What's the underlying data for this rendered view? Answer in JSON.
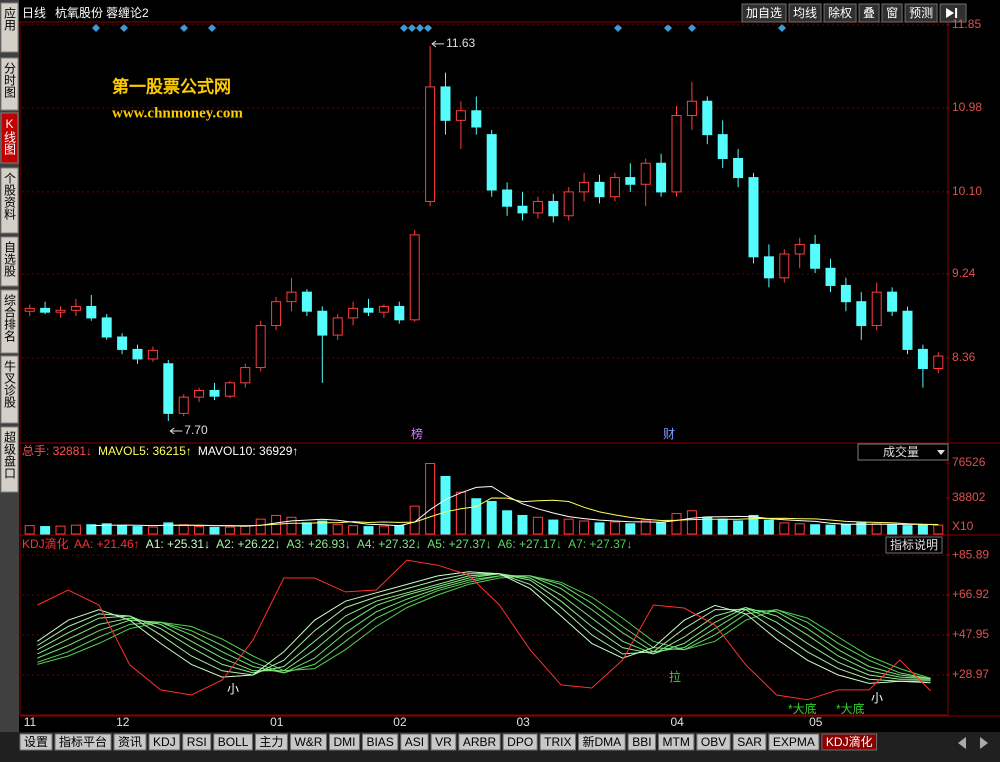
{
  "app": {
    "sidebar": [
      "应用",
      "分时图",
      "K线图",
      "个股资料",
      "自选股",
      "综合排名",
      "牛叉诊股",
      "超级盘口"
    ],
    "header": {
      "period": "日线",
      "stock": "杭氧股份",
      "formula": "蓉缠论2"
    },
    "toolbar": [
      "加自选",
      "均线",
      "除权",
      "叠",
      "窗",
      "预测"
    ],
    "tabs": [
      "设置",
      "指标平台",
      "资讯",
      "KDJ",
      "RSI",
      "BOLL",
      "主力",
      "W&R",
      "DMI",
      "BIAS",
      "ASI",
      "VR",
      "ARBR",
      "DPO",
      "TRIX",
      "新DMA",
      "BBI",
      "MTM",
      "OBV",
      "SAR",
      "EXPMA",
      "KDJ滴化"
    ],
    "watermark": [
      "第一股票公式网",
      "www.chnmoney.com"
    ]
  },
  "chart_data": [
    {
      "type": "candlestick",
      "categories": [
        "11",
        null,
        null,
        null,
        null,
        null,
        "12",
        null,
        null,
        null,
        null,
        null,
        null,
        null,
        null,
        null,
        "01",
        null,
        null,
        null,
        null,
        null,
        null,
        null,
        "02",
        null,
        null,
        null,
        null,
        null,
        null,
        null,
        "03",
        null,
        null,
        null,
        null,
        null,
        null,
        null,
        null,
        null,
        "04",
        null,
        null,
        null,
        null,
        null,
        null,
        null,
        null,
        "05",
        null,
        null,
        null,
        null,
        null,
        null,
        null,
        null
      ],
      "open": [
        8.85,
        8.88,
        8.84,
        8.86,
        8.9,
        8.78,
        8.58,
        8.45,
        8.35,
        8.3,
        7.78,
        7.95,
        8.02,
        7.96,
        8.1,
        8.26,
        8.7,
        8.95,
        9.05,
        8.85,
        8.6,
        8.78,
        8.88,
        8.84,
        8.9,
        8.76,
        10.0,
        11.2,
        10.85,
        10.95,
        10.7,
        10.12,
        9.95,
        9.88,
        10.0,
        9.85,
        10.1,
        10.2,
        10.05,
        10.25,
        10.18,
        10.4,
        10.1,
        10.9,
        11.05,
        10.7,
        10.45,
        10.25,
        9.42,
        9.2,
        9.45,
        9.55,
        9.3,
        9.12,
        8.95,
        8.7,
        9.05,
        8.85,
        8.45,
        8.25
      ],
      "high": [
        8.92,
        8.95,
        8.9,
        8.98,
        9.02,
        8.82,
        8.62,
        8.5,
        8.48,
        8.34,
        7.98,
        8.05,
        8.1,
        8.12,
        8.3,
        8.75,
        9.0,
        9.2,
        9.08,
        8.9,
        8.82,
        8.95,
        8.98,
        8.92,
        8.95,
        9.7,
        11.63,
        11.35,
        11.05,
        11.1,
        10.75,
        10.2,
        10.1,
        10.05,
        10.08,
        10.15,
        10.3,
        10.28,
        10.3,
        10.4,
        10.45,
        10.5,
        11.0,
        11.25,
        11.1,
        10.85,
        10.55,
        10.3,
        9.55,
        9.5,
        9.62,
        9.65,
        9.4,
        9.2,
        9.05,
        9.15,
        9.1,
        8.9,
        8.5,
        8.42
      ],
      "low": [
        8.8,
        8.82,
        8.78,
        8.8,
        8.75,
        8.55,
        8.4,
        8.3,
        8.32,
        7.7,
        7.75,
        7.9,
        7.92,
        7.94,
        8.05,
        8.22,
        8.65,
        8.85,
        8.8,
        8.1,
        8.55,
        8.7,
        8.8,
        8.78,
        8.72,
        8.74,
        9.95,
        10.7,
        10.55,
        10.7,
        10.05,
        9.85,
        9.8,
        9.82,
        9.78,
        9.8,
        10.0,
        9.98,
        10.0,
        10.1,
        9.95,
        10.05,
        10.05,
        10.75,
        10.6,
        10.35,
        10.15,
        9.35,
        9.1,
        9.15,
        9.3,
        9.25,
        9.05,
        8.85,
        8.55,
        8.65,
        8.8,
        8.4,
        8.05,
        8.2
      ],
      "close": [
        8.88,
        8.84,
        8.86,
        8.9,
        8.78,
        8.58,
        8.45,
        8.35,
        8.44,
        7.78,
        7.95,
        8.02,
        7.96,
        8.1,
        8.26,
        8.7,
        8.95,
        9.05,
        8.85,
        8.6,
        8.78,
        8.88,
        8.84,
        8.9,
        8.76,
        9.65,
        11.2,
        10.85,
        10.95,
        10.78,
        10.12,
        9.95,
        9.88,
        10.0,
        9.85,
        10.1,
        10.2,
        10.05,
        10.25,
        10.18,
        10.4,
        10.1,
        10.9,
        11.05,
        10.7,
        10.45,
        10.25,
        9.42,
        9.2,
        9.45,
        9.55,
        9.3,
        9.12,
        8.95,
        8.7,
        9.05,
        8.85,
        8.45,
        8.25,
        8.38
      ],
      "up_color": "#ff3c3c",
      "down_color": "#54fcfc",
      "ylim": [
        7.48,
        11.88
      ],
      "yticks": [
        8.36,
        9.24,
        {
          "value": 10.1,
          "label": "10.10"
        },
        10.98,
        11.85
      ],
      "grid": true,
      "annotations": [
        {
          "value": 11.63,
          "label": "11.63"
        },
        {
          "value": 7.7,
          "label": "7.70"
        }
      ],
      "markers": [
        "榜",
        "财"
      ]
    },
    {
      "type": "bar",
      "title": "成交量",
      "readout": [
        "总手: 32881↓",
        "MAVOL5: 36215↑",
        "MAVOL10: 36929↑"
      ],
      "values": [
        9000,
        8000,
        8500,
        9500,
        10000,
        11000,
        9000,
        8000,
        7500,
        12000,
        10000,
        8000,
        7000,
        7500,
        9000,
        16000,
        20000,
        18000,
        12000,
        14000,
        10000,
        9000,
        8000,
        8500,
        9000,
        30000,
        76000,
        62000,
        45000,
        38000,
        35000,
        25000,
        20000,
        18000,
        15000,
        16000,
        14000,
        12000,
        13000,
        11000,
        15000,
        12000,
        22000,
        25000,
        18000,
        16000,
        14000,
        20000,
        15000,
        12000,
        11000,
        10000,
        9500,
        10000,
        12000,
        11000,
        10000,
        9000,
        10000,
        9500
      ],
      "lines": [
        {
          "color": "#ffffff",
          "values": [
            null,
            null,
            null,
            null,
            9000,
            9400,
            9600,
            9500,
            9100,
            9500,
            9300,
            9300,
            8900,
            8900,
            8300,
            9500,
            11900,
            14100,
            15000,
            16000,
            14800,
            12600,
            10600,
            9900,
            8900,
            12900,
            26300,
            37100,
            44400,
            50200,
            51200,
            41000,
            32600,
            27200,
            22600,
            18800,
            16600,
            15000,
            14000,
            13200,
            13000,
            12600,
            14600,
            17000,
            18400,
            18600,
            19000,
            18600,
            16600,
            15400,
            14400,
            13600,
            11500,
            10500,
            10500,
            10500,
            10500,
            10400,
            10400,
            9900
          ]
        },
        {
          "color": "#ffff60",
          "values": [
            null,
            null,
            null,
            null,
            null,
            null,
            null,
            null,
            null,
            9250,
            9350,
            9450,
            9200,
            9000,
            8900,
            9400,
            10600,
            11500,
            11650,
            12150,
            12150,
            13350,
            12350,
            12950,
            12450,
            12850,
            18450,
            23850,
            27150,
            29550,
            38750,
            38650,
            34850,
            35800,
            36400,
            35000,
            28800,
            23800,
            20600,
            17900,
            15900,
            14600,
            14800,
            15500,
            15800,
            15800,
            15800,
            16600,
            16800,
            16900,
            16500,
            16300,
            15050,
            13550,
            12950,
            12450,
            12050,
            11050,
            10450,
            10200
          ]
        }
      ],
      "ylim": [
        0,
        79760
      ],
      "yticks": [
        38802,
        76526
      ],
      "unit_label": "X10"
    },
    {
      "type": "line",
      "title": "KDJ滴化",
      "button": "指标说明",
      "series": [
        {
          "label": "AA: +21.46↑",
          "color": "#ff3030",
          "values": [
            62.2,
            69.3,
            62.2,
            33.8,
            21.9,
            19.5,
            26.6,
            45.6,
            75.0,
            75.0,
            68.4,
            69.3,
            83.5,
            81.1,
            76.4,
            62.2,
            40.9,
            24.3,
            22.8,
            36.1,
            62.2,
            60.8,
            52.7,
            33.8,
            19.5,
            17.2,
            21.9,
            21.9,
            36.1,
            21.46
          ]
        },
        {
          "label": "A1: +25.31↓",
          "color": "#c8ffc8",
          "values": [
            45,
            55,
            60,
            55,
            44,
            34,
            28,
            29,
            40,
            55,
            64,
            68,
            72,
            76,
            78,
            77,
            70,
            57,
            44,
            37,
            42,
            55,
            62,
            58,
            46,
            36,
            29,
            25,
            26,
            25.31
          ]
        },
        {
          "label": "A2: +26.22↓",
          "color": "#a8f0a8",
          "values": [
            43,
            52,
            58,
            57,
            48,
            38,
            31,
            29,
            36,
            50,
            61,
            66,
            70,
            74,
            77,
            77,
            72,
            61,
            48,
            39,
            40,
            51,
            60,
            60,
            50,
            40,
            32,
            27,
            26,
            26.22
          ]
        },
        {
          "label": "A3: +26.93↓",
          "color": "#90ec90",
          "values": [
            41,
            49,
            56,
            57,
            51,
            42,
            34,
            30,
            33,
            45,
            57,
            64,
            68,
            72,
            76,
            77,
            74,
            64,
            52,
            42,
            39,
            47,
            57,
            61,
            54,
            44,
            35,
            29,
            27,
            26.93
          ]
        },
        {
          "label": "A4: +27.32↓",
          "color": "#80e880",
          "values": [
            39,
            46,
            53,
            56,
            53,
            45,
            37,
            31,
            31,
            41,
            53,
            62,
            67,
            71,
            75,
            77,
            75,
            67,
            56,
            45,
            39,
            44,
            54,
            61,
            57,
            48,
            38,
            31,
            28,
            27.32
          ]
        },
        {
          "label": "A5: +27.37↓",
          "color": "#70e070",
          "values": [
            37,
            43,
            50,
            55,
            54,
            48,
            40,
            33,
            30,
            37,
            49,
            59,
            65,
            70,
            74,
            76,
            76,
            70,
            60,
            49,
            40,
            42,
            51,
            60,
            59,
            51,
            41,
            33,
            29,
            27.37
          ]
        },
        {
          "label": "A6: +27.17↓",
          "color": "#60d860",
          "values": [
            35,
            40,
            47,
            53,
            54,
            50,
            43,
            35,
            30,
            34,
            45,
            56,
            63,
            69,
            73,
            76,
            76,
            72,
            63,
            52,
            42,
            41,
            48,
            58,
            60,
            54,
            44,
            36,
            30,
            27.17
          ]
        },
        {
          "label": "A7: +27.37↓",
          "color": "#50d050",
          "values": [
            34,
            38,
            44,
            51,
            54,
            52,
            46,
            38,
            31,
            32,
            41,
            52,
            61,
            67,
            72,
            75,
            76,
            73,
            66,
            56,
            45,
            41,
            45,
            55,
            60,
            56,
            47,
            38,
            32,
            27.37
          ]
        }
      ],
      "ylim": [
        10,
        94
      ],
      "yticks": [
        {
          "value": 28.97,
          "label": "+28.97"
        },
        {
          "value": 47.95,
          "label": "+47.95"
        },
        {
          "value": 66.92,
          "label": "+66.92"
        },
        {
          "value": 85.89,
          "label": "+85.89"
        }
      ],
      "grid": true,
      "annotations": [
        "小",
        "拉",
        "*大底",
        "*大底",
        "小"
      ]
    }
  ]
}
